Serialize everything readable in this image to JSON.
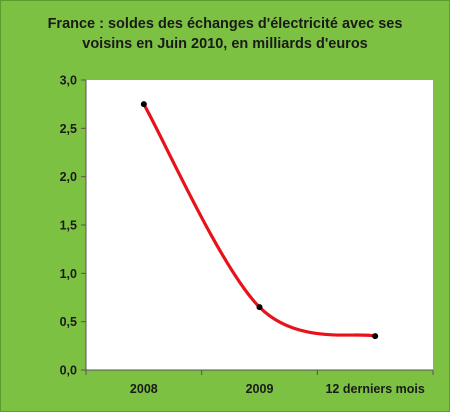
{
  "chart_data": {
    "type": "line",
    "title_lines": [
      "France : soldes des échanges d'électricité avec ses",
      "voisins en Juin 2010, en milliards  d'euros"
    ],
    "categories": [
      "2008",
      "2009",
      "12 derniers mois"
    ],
    "values": [
      2.75,
      0.65,
      0.35
    ],
    "ylim": [
      0,
      3
    ],
    "yticks": [
      "0,0",
      "0,5",
      "1,0",
      "1,5",
      "2,0",
      "2,5",
      "3,0"
    ],
    "ytick_values": [
      0,
      0.5,
      1,
      1.5,
      2,
      2.5,
      3
    ],
    "grid": false,
    "legend": "none",
    "line_color": "#e8121a",
    "marker_color": "#000000",
    "background_color": "#7dc142",
    "plot_color": "#ffffff"
  }
}
